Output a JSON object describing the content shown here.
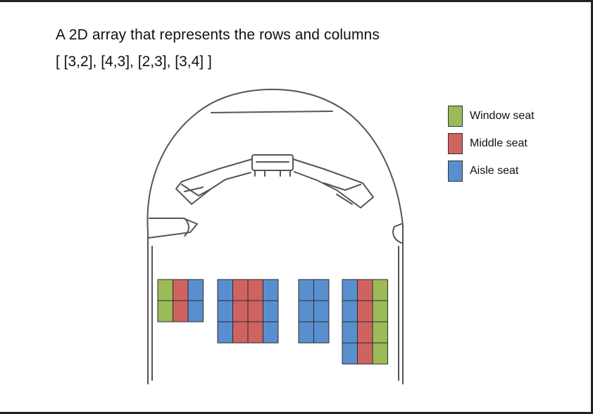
{
  "header": {
    "title": "A 2D array that represents the rows and columns",
    "array_text": "[ [3,2], [4,3], [2,3], [3,4] ]"
  },
  "legend": [
    {
      "label": "Window seat",
      "color": "#9bbb59",
      "kind": "window"
    },
    {
      "label": "Middle seat",
      "color": "#cf6360",
      "kind": "middle"
    },
    {
      "label": "Aisle seat",
      "color": "#5a8fcf",
      "kind": "aisle"
    }
  ],
  "seat_blocks": [
    {
      "cols": [
        "window",
        "middle",
        "aisle"
      ],
      "rows": 2
    },
    {
      "cols": [
        "aisle",
        "middle",
        "middle",
        "aisle"
      ],
      "rows": 3
    },
    {
      "cols": [
        "aisle",
        "aisle"
      ],
      "rows": 3
    },
    {
      "cols": [
        "aisle",
        "middle",
        "window"
      ],
      "rows": 4
    }
  ]
}
